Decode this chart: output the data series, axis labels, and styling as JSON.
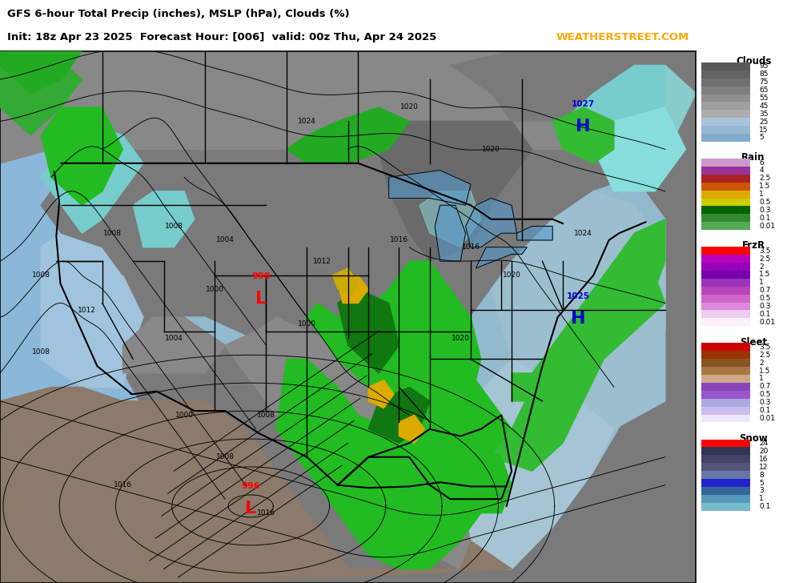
{
  "title_line1": "GFS 6-hour Total Precip (inches), MSLP (hPa), Clouds (%)",
  "title_line2": "Init: 18z Apr 23 2025  Forecast Hour: [006]  valid: 00z Thu, Apr 24 2025",
  "brand": "WEATHERSTREET.COM",
  "brand_color": "#FFA500",
  "title_color": "#000000",
  "lon_min": -130,
  "lon_max": -62,
  "lat_min": 19,
  "lat_max": 57,
  "lon_ticks": [
    -125,
    -120,
    -115,
    -110,
    -105,
    -100,
    -95,
    -90,
    -85,
    -80,
    -75,
    -70,
    -65
  ],
  "lat_ticks": [
    20,
    25,
    30,
    35,
    40,
    45,
    50,
    55
  ],
  "clouds_label": "Clouds",
  "clouds_vals": [
    "95",
    "85",
    "75",
    "65",
    "55",
    "45",
    "35",
    "25",
    "15",
    "5"
  ],
  "clouds_colors": [
    "#595959",
    "#636363",
    "#707070",
    "#7f7f7f",
    "#8f8f8f",
    "#9f9f9f",
    "#ADADAD",
    "#A8C4DC",
    "#95B8D4",
    "#82ABCB"
  ],
  "rain_label": "Rain",
  "rain_vals": [
    "6",
    "4",
    "2.5",
    "1.5",
    "1",
    "0.5",
    "0.3",
    "0.1",
    "0.01"
  ],
  "rain_colors": [
    "#CC99CC",
    "#993399",
    "#AA2222",
    "#CC5500",
    "#DDAA00",
    "#CCCC00",
    "#006600",
    "#338833",
    "#55AA55"
  ],
  "frzr_label": "FrzR",
  "frzr_vals": [
    "3.5",
    "2.5",
    "2",
    "1.5",
    "1",
    "0.7",
    "0.5",
    "0.3",
    "0.1",
    "0.01"
  ],
  "frzr_colors": [
    "#FF0000",
    "#BB00BB",
    "#9900BB",
    "#7700AA",
    "#9933BB",
    "#BB44BB",
    "#CC66CC",
    "#DD88DD",
    "#EECCEE",
    "#FFF0FF"
  ],
  "sleet_label": "Sleet",
  "sleet_vals": [
    "3.5",
    "2.5",
    "2",
    "1.5",
    "1",
    "0.7",
    "0.5",
    "0.3",
    "0.1",
    "0.01"
  ],
  "sleet_colors": [
    "#CC0000",
    "#993300",
    "#885522",
    "#AA7744",
    "#CCAA88",
    "#8844BB",
    "#9955CC",
    "#AAAADD",
    "#CCBBEE",
    "#EEE8FF"
  ],
  "snow_label": "Snow",
  "snow_vals": [
    "24",
    "20",
    "16",
    "12",
    "8",
    "5",
    "3",
    "1",
    "0.1"
  ],
  "snow_colors": [
    "#FF0000",
    "#333355",
    "#444466",
    "#555577",
    "#6677AA",
    "#2222CC",
    "#336699",
    "#5599BB",
    "#77BBCC"
  ],
  "lows": [
    [
      -104.5,
      40.2,
      "998"
    ],
    [
      -105.5,
      25.2,
      "996"
    ]
  ],
  "highs": [
    [
      -73.0,
      52.5,
      "1027"
    ],
    [
      -73.5,
      38.8,
      "1025"
    ]
  ],
  "isobar_labels": [
    [
      -126,
      35.5,
      "1008"
    ],
    [
      -121.5,
      38.5,
      "1012"
    ],
    [
      -126,
      41,
      "1008"
    ],
    [
      -119,
      44,
      "1008"
    ],
    [
      -113,
      44.5,
      "1008"
    ],
    [
      -108,
      43.5,
      "1004"
    ],
    [
      -109,
      40,
      "1000"
    ],
    [
      -113,
      36.5,
      "1004"
    ],
    [
      -112,
      31,
      "1000"
    ],
    [
      -108,
      28,
      "1008"
    ],
    [
      -104,
      31,
      "1008"
    ],
    [
      -100,
      37.5,
      "1000"
    ],
    [
      -98.5,
      42,
      "1012"
    ],
    [
      -91,
      43.5,
      "1016"
    ],
    [
      -84,
      43,
      "1016"
    ],
    [
      -80,
      41,
      "1020"
    ],
    [
      -85,
      36.5,
      "1020"
    ],
    [
      -73,
      44,
      "1024"
    ],
    [
      -100,
      52,
      "1024"
    ],
    [
      -90,
      53,
      "1020"
    ],
    [
      -82,
      50,
      "1020"
    ],
    [
      -118,
      26,
      "1016"
    ],
    [
      -104,
      24,
      "1016"
    ]
  ]
}
